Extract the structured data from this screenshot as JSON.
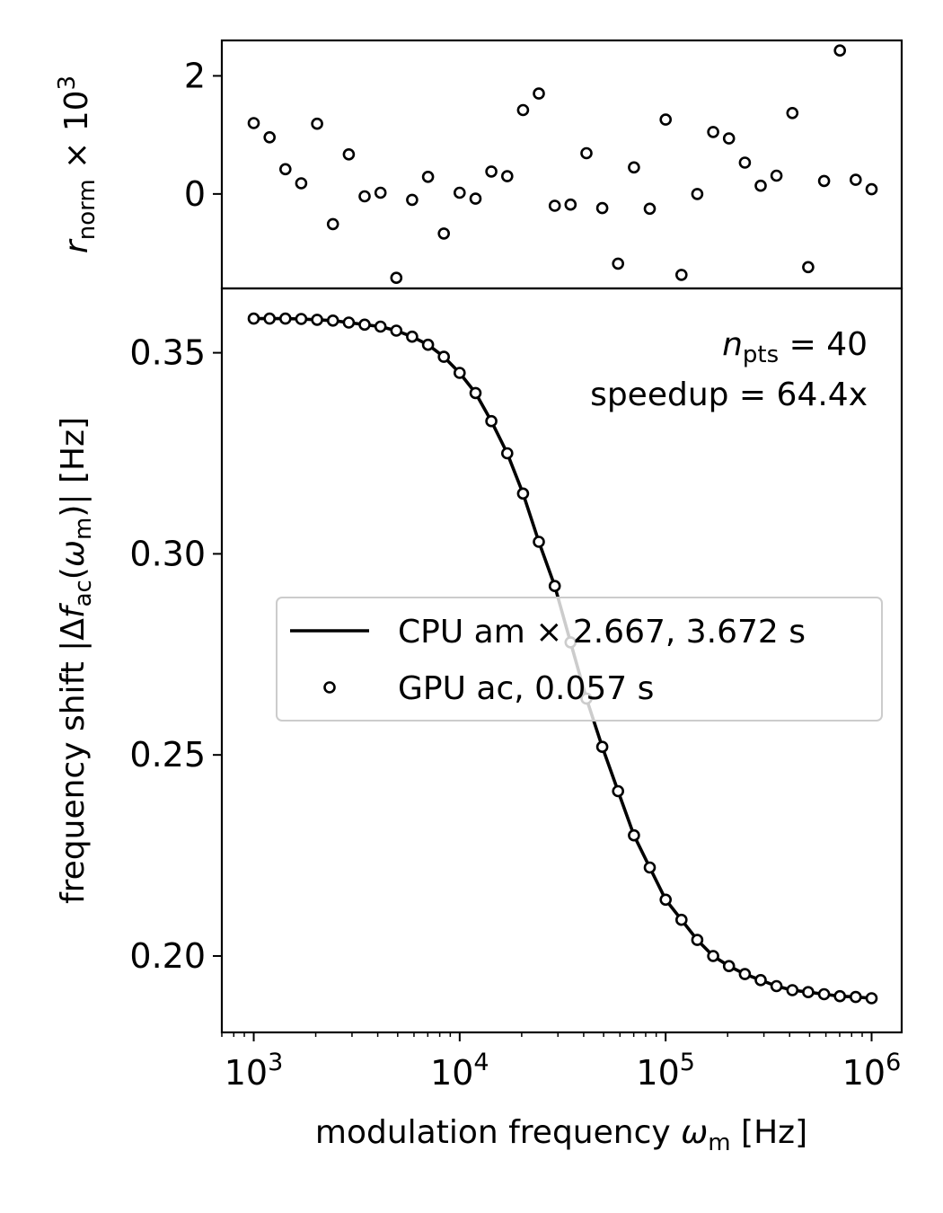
{
  "chart_data": [
    {
      "panel": "top",
      "type": "scatter",
      "ylabel": "r_norm × 10^3",
      "ylabel_parts": {
        "sym": "r",
        "sub": "norm",
        "mult": " × 10",
        "sup": "3"
      },
      "xscale": "log",
      "xlim": [
        700,
        1400000
      ],
      "ylim": [
        -1.6,
        2.6
      ],
      "yticks": [
        {
          "v": 0,
          "label": "0"
        },
        {
          "v": 2,
          "label": "2"
        }
      ],
      "marker": {
        "shape": "open-circle",
        "color": "#000000"
      },
      "series": [
        {
          "x": [
            1000,
            1194,
            1425,
            1701,
            2031,
            2424,
            2894,
            3455,
            4125,
            4924,
            5878,
            7017,
            8377,
            10000,
            11938,
            14251,
            17013,
            20309,
            24245,
            28943,
            34551,
            41246,
            49239,
            58780,
            70170,
            83768,
            100000,
            119378,
            142510,
            170125,
            203092,
            242446,
            289427,
            345511,
            412463,
            492388,
            587802,
            701704,
            837678,
            1000000
          ],
          "y": [
            1.2,
            0.96,
            0.42,
            0.18,
            1.19,
            -0.51,
            0.67,
            -0.04,
            0.02,
            -1.42,
            -0.1,
            0.29,
            -0.67,
            0.02,
            -0.08,
            0.38,
            0.3,
            1.42,
            1.7,
            -0.2,
            -0.18,
            0.69,
            -0.24,
            -1.18,
            0.45,
            -0.25,
            1.26,
            -1.37,
            0.0,
            1.05,
            0.94,
            0.53,
            0.14,
            0.31,
            1.37,
            -1.24,
            0.22,
            2.43,
            0.24,
            0.08
          ]
        }
      ]
    },
    {
      "panel": "bottom",
      "type": "line",
      "xlabel": "modulation frequency ω_m [Hz]",
      "xlabel_parts": {
        "pre": "modulation frequency ",
        "sym": "ω",
        "sub": "m",
        "post": " [Hz]"
      },
      "ylabel": "frequency shift |Δf_ac(ω_m)| [Hz]",
      "ylabel_parts": {
        "pre": "frequency shift |Δ",
        "f": "f",
        "sub_ac": "ac",
        "mid": "(",
        "w": "ω",
        "sub_m": "m",
        "post": ")| [Hz]"
      },
      "xscale": "log",
      "xlim": [
        700,
        1400000
      ],
      "ylim": [
        0.181,
        0.366
      ],
      "xticks": [
        {
          "v": 1000,
          "base": "10",
          "exp": "3"
        },
        {
          "v": 10000,
          "base": "10",
          "exp": "4"
        },
        {
          "v": 100000,
          "base": "10",
          "exp": "5"
        },
        {
          "v": 1000000,
          "base": "10",
          "exp": "6"
        }
      ],
      "yticks": [
        {
          "v": 0.2,
          "label": "0.20"
        },
        {
          "v": 0.25,
          "label": "0.25"
        },
        {
          "v": 0.3,
          "label": "0.30"
        },
        {
          "v": 0.35,
          "label": "0.35"
        }
      ],
      "legend": {
        "location": "center-right",
        "entries": [
          "CPU am × 2.667, 3.672 s",
          "GPU ac, 0.057 s"
        ]
      },
      "annotations": {
        "npts_sym": "n",
        "npts_sub": "pts",
        "npts_value": " = 40",
        "speedup": "speedup = 64.4x"
      },
      "series": [
        {
          "name": "CPU am × 2.667, 3.672 s",
          "style": "line",
          "color": "#000000",
          "x": [
            1000,
            1194,
            1425,
            1701,
            2031,
            2424,
            2894,
            3455,
            4125,
            4924,
            5878,
            7017,
            8377,
            10000,
            11938,
            14251,
            17013,
            20309,
            24245,
            28943,
            34551,
            41246,
            49239,
            58780,
            70170,
            83768,
            100000,
            119378,
            142510,
            170125,
            203092,
            242446,
            289427,
            345511,
            412463,
            492388,
            587802,
            701704,
            837678,
            1000000
          ],
          "y": [
            0.3585,
            0.3585,
            0.3585,
            0.3584,
            0.3582,
            0.358,
            0.3575,
            0.357,
            0.3565,
            0.3555,
            0.354,
            0.352,
            0.349,
            0.345,
            0.34,
            0.333,
            0.325,
            0.315,
            0.303,
            0.292,
            0.278,
            0.264,
            0.252,
            0.241,
            0.23,
            0.222,
            0.214,
            0.209,
            0.204,
            0.2,
            0.1975,
            0.1955,
            0.194,
            0.1925,
            0.1915,
            0.191,
            0.1905,
            0.19,
            0.1898,
            0.1895
          ]
        },
        {
          "name": "GPU ac, 0.057 s",
          "style": "open-circle",
          "color": "#000000",
          "x": [
            1000,
            1194,
            1425,
            1701,
            2031,
            2424,
            2894,
            3455,
            4125,
            4924,
            5878,
            7017,
            8377,
            10000,
            11938,
            14251,
            17013,
            20309,
            24245,
            28943,
            34551,
            41246,
            49239,
            58780,
            70170,
            83768,
            100000,
            119378,
            142510,
            170125,
            203092,
            242446,
            289427,
            345511,
            412463,
            492388,
            587802,
            701704,
            837678,
            1000000
          ],
          "y": [
            0.3585,
            0.3585,
            0.3585,
            0.3584,
            0.3582,
            0.358,
            0.3575,
            0.357,
            0.3565,
            0.3555,
            0.354,
            0.352,
            0.349,
            0.345,
            0.34,
            0.333,
            0.325,
            0.315,
            0.303,
            0.292,
            0.278,
            0.264,
            0.252,
            0.241,
            0.23,
            0.222,
            0.214,
            0.209,
            0.204,
            0.2,
            0.1975,
            0.1955,
            0.194,
            0.1925,
            0.1915,
            0.191,
            0.1905,
            0.19,
            0.1898,
            0.1895
          ]
        }
      ]
    }
  ]
}
